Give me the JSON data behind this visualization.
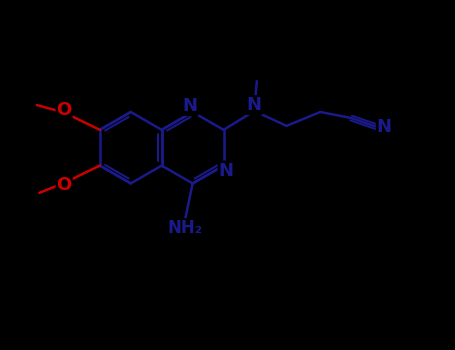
{
  "bg_color": "#000000",
  "n_color": "#1a1a8c",
  "o_color": "#cc0000",
  "bond_color": "#1a1a8c",
  "white_bond": "#1a1a8c",
  "lw": 1.8,
  "fs_label": 13,
  "fs_small": 11,
  "figsize": [
    4.55,
    3.5
  ],
  "dpi": 100,
  "xlim": [
    0,
    9.1
  ],
  "ylim": [
    0,
    7.0
  ]
}
